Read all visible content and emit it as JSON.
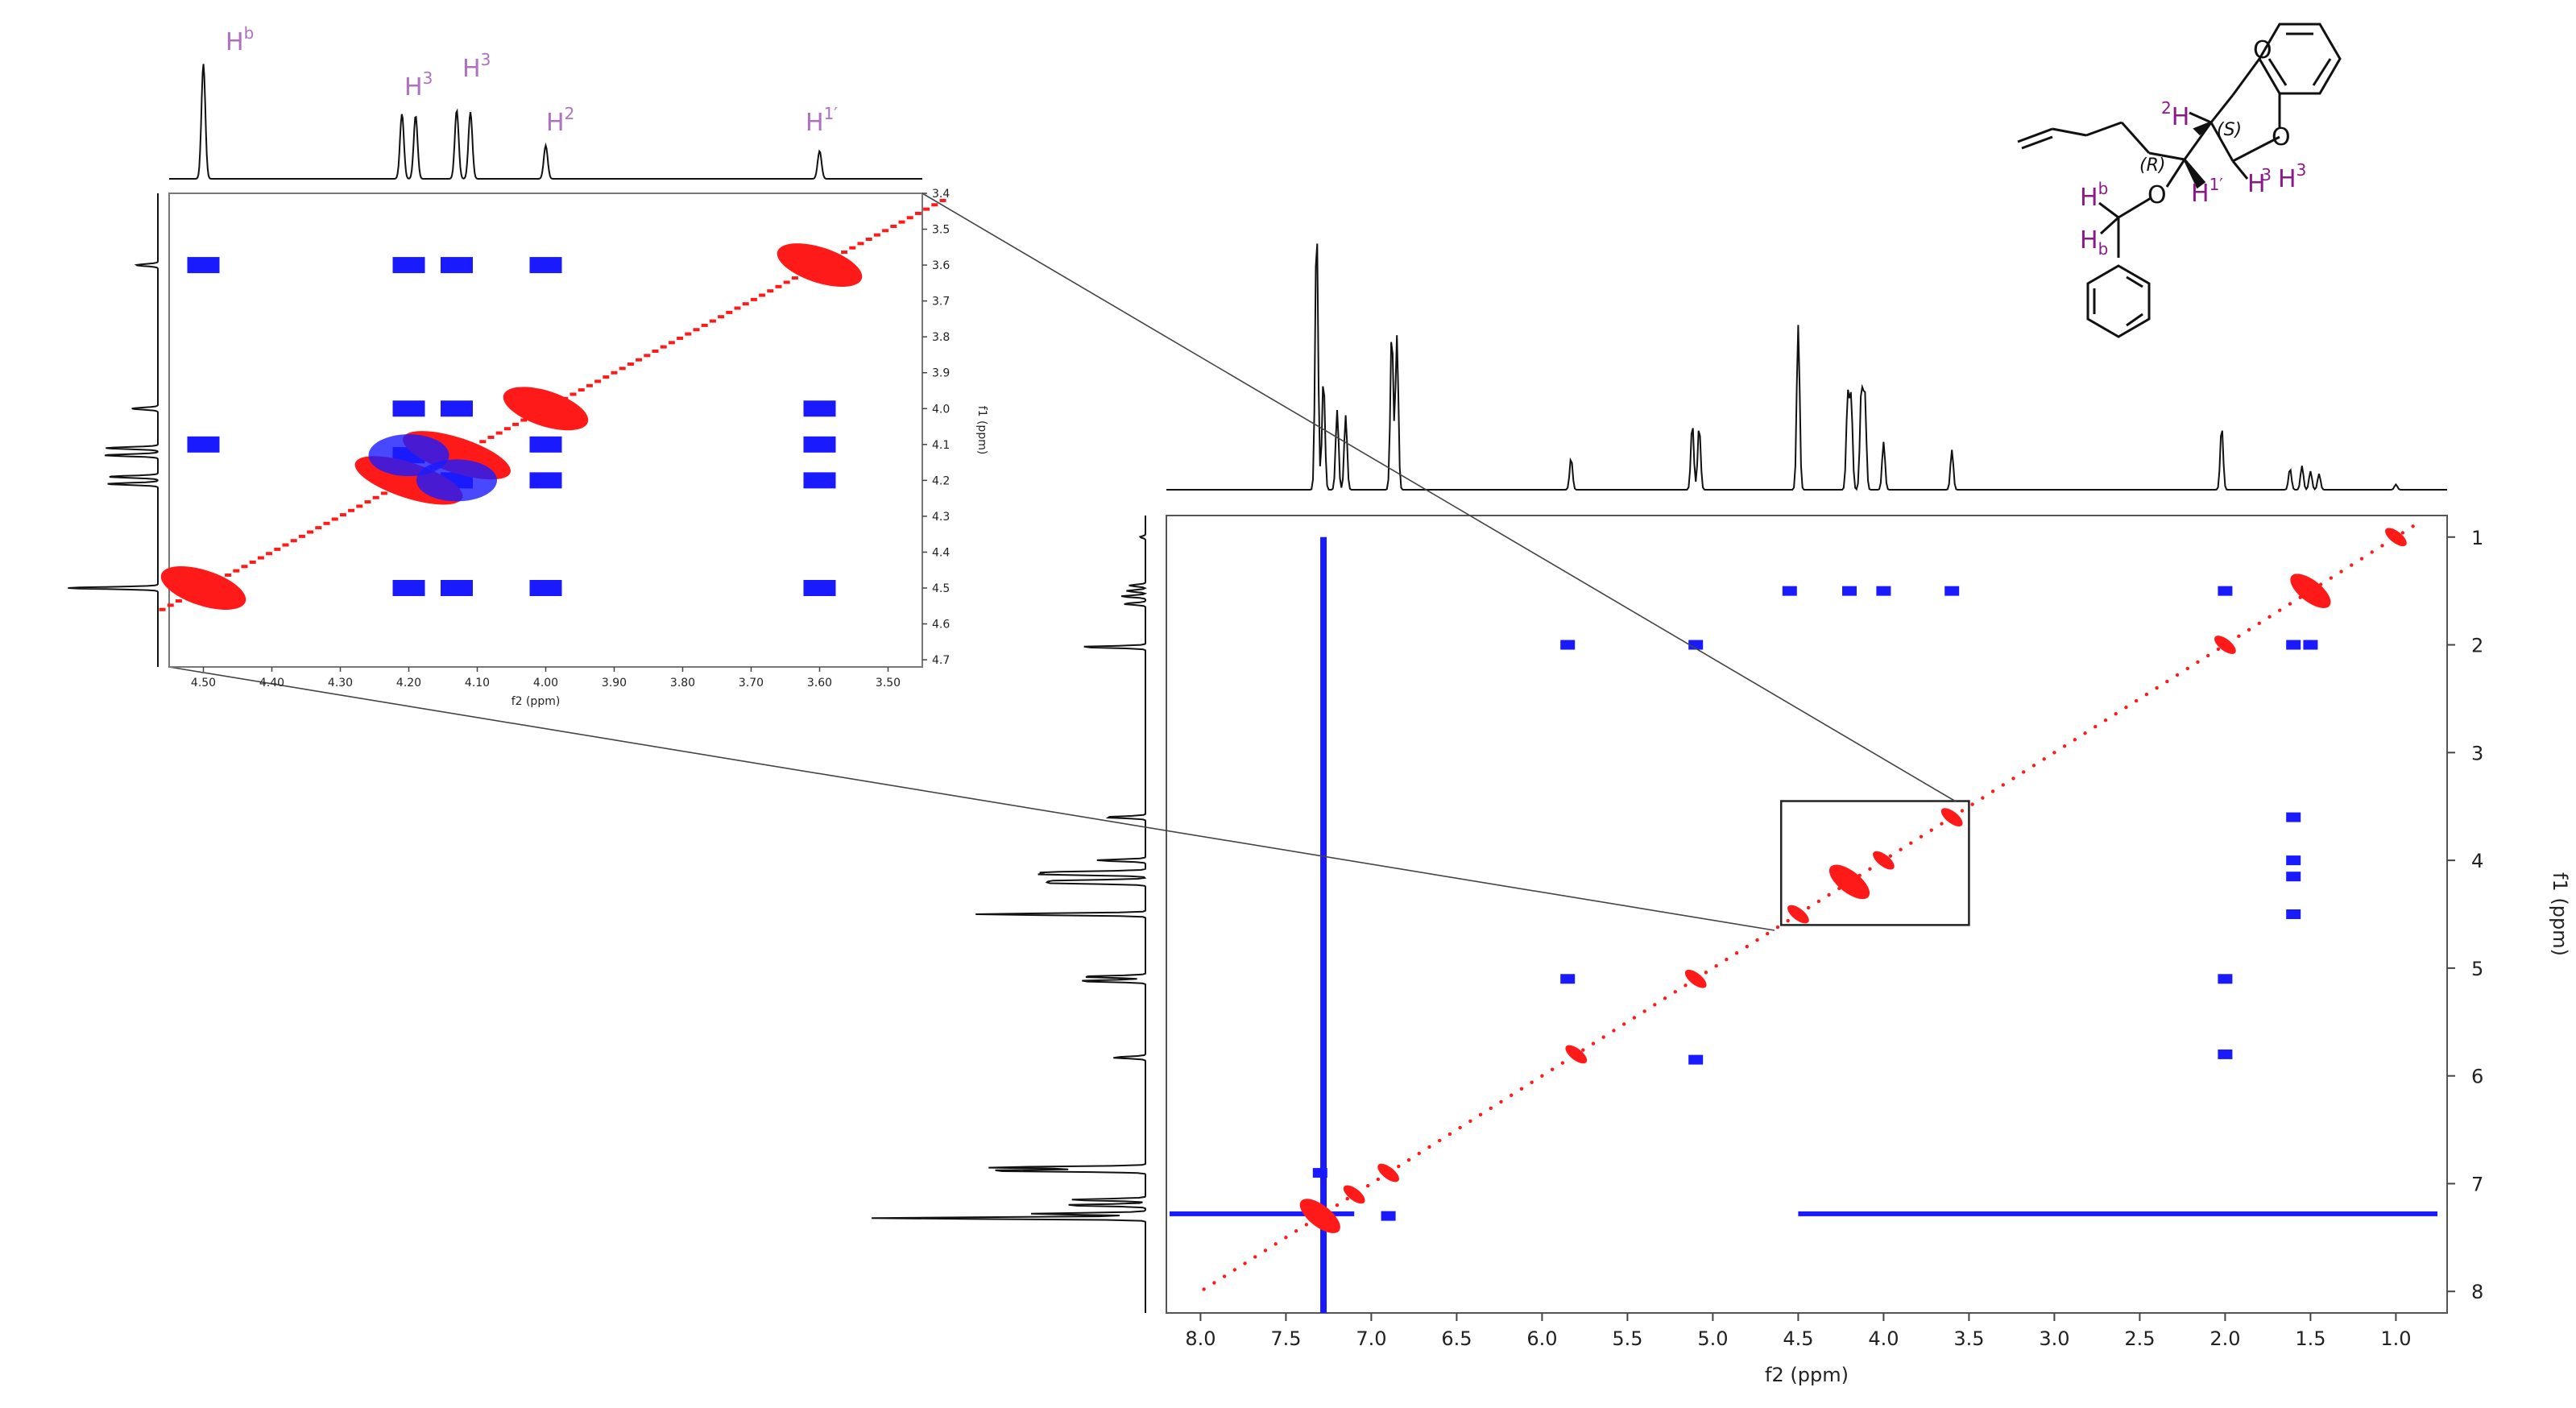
{
  "chart_data": [
    {
      "type": "heatmap",
      "subtype": "2D NMR contour plot (COSY-type)",
      "xlabel": "f2 (ppm)",
      "ylabel": "f1 (ppm)",
      "xlim": [
        8.2,
        0.7
      ],
      "ylim": [
        0.8,
        8.2
      ],
      "xticks": [
        "8.0",
        "7.5",
        "7.0",
        "6.5",
        "6.0",
        "5.5",
        "5.0",
        "4.5",
        "4.0",
        "3.5",
        "3.0",
        "2.5",
        "2.0",
        "1.5",
        "1.0"
      ],
      "yticks": [
        "1",
        "2",
        "3",
        "4",
        "5",
        "6",
        "7",
        "8"
      ],
      "diagonal_peaks": [
        1.0,
        1.5,
        2.0,
        3.6,
        4.0,
        4.2,
        4.5,
        5.1,
        5.8,
        6.9,
        7.1,
        7.3
      ],
      "cross_peaks": [
        {
          "f2": 7.28,
          "f1": [
            1.0,
            8.2
          ],
          "kind": "solvent-stripe"
        },
        {
          "f2": 5.85,
          "f1": 2.0
        },
        {
          "f2": 5.1,
          "f1": 2.0
        },
        {
          "f2": 4.55,
          "f1": 1.5
        },
        {
          "f2": 4.2,
          "f1": 1.5
        },
        {
          "f2": 4.0,
          "f1": 1.5
        },
        {
          "f2": 3.6,
          "f1": 1.5
        },
        {
          "f2": 2.0,
          "f1": 1.5
        },
        {
          "f2": 1.6,
          "f1": 2.0
        },
        {
          "f2": 1.5,
          "f1": 2.0
        },
        {
          "f2": 2.0,
          "f1": 5.1
        },
        {
          "f2": 2.0,
          "f1": 5.8
        },
        {
          "f2": 1.6,
          "f1": 3.6
        },
        {
          "f2": 1.6,
          "f1": 4.0
        },
        {
          "f2": 1.6,
          "f1": 4.15
        },
        {
          "f2": 1.6,
          "f1": 4.5
        },
        {
          "f2": 5.85,
          "f1": 5.1
        },
        {
          "f2": 5.1,
          "f1": 5.85
        },
        {
          "f2": 7.3,
          "f1": 6.9
        },
        {
          "f2": 6.9,
          "f1": 7.3
        },
        {
          "f2": 4.5,
          "f1": 7.28,
          "kind": "solvent-stripe-horizontal"
        }
      ],
      "inset_box": {
        "f2": [
          4.6,
          3.5
        ],
        "f1": [
          3.45,
          4.6
        ]
      }
    },
    {
      "type": "heatmap",
      "subtype": "expanded 2D NMR region",
      "xlabel": "f2 (ppm)",
      "ylabel": "f1 (ppm)",
      "xlim": [
        4.55,
        3.45
      ],
      "ylim": [
        3.4,
        4.72
      ],
      "xticks": [
        "4.50",
        "4.40",
        "4.30",
        "4.20",
        "4.10",
        "4.00",
        "3.90",
        "3.80",
        "3.70",
        "3.60",
        "3.50"
      ],
      "yticks": [
        "3.4",
        "3.5",
        "3.6",
        "3.7",
        "3.8",
        "3.9",
        "4.0",
        "4.1",
        "4.2",
        "4.3",
        "4.4",
        "4.5",
        "4.6",
        "4.7"
      ],
      "peak_labels": [
        "H",
        "H",
        "H",
        "H",
        "H"
      ],
      "peak_label_sups": [
        "b",
        "3",
        "3",
        "2",
        "1′"
      ],
      "diagonal_peaks": [
        3.6,
        4.0,
        4.13,
        4.2,
        4.5
      ],
      "cross_peaks": [
        {
          "f2": 4.5,
          "f1": 3.6
        },
        {
          "f2": 4.2,
          "f1": 3.6
        },
        {
          "f2": 4.13,
          "f1": 3.6
        },
        {
          "f2": 4.0,
          "f1": 3.6
        },
        {
          "f2": 4.2,
          "f1": 4.0
        },
        {
          "f2": 4.13,
          "f1": 4.0
        },
        {
          "f2": 3.6,
          "f1": 4.0
        },
        {
          "f2": 4.2,
          "f1": 4.13
        },
        {
          "f2": 4.13,
          "f1": 4.2
        },
        {
          "f2": 4.5,
          "f1": 4.1
        },
        {
          "f2": 4.0,
          "f1": 4.1
        },
        {
          "f2": 3.6,
          "f1": 4.1
        },
        {
          "f2": 4.0,
          "f1": 4.2
        },
        {
          "f2": 3.6,
          "f1": 4.2
        },
        {
          "f2": 4.2,
          "f1": 4.5
        },
        {
          "f2": 4.13,
          "f1": 4.5
        },
        {
          "f2": 4.0,
          "f1": 4.5
        },
        {
          "f2": 3.6,
          "f1": 4.5
        }
      ]
    }
  ],
  "spectrum_1d": {
    "peaks_ppm": [
      7.32,
      7.28,
      7.2,
      7.15,
      6.88,
      6.85,
      5.83,
      5.12,
      5.08,
      4.5,
      4.21,
      4.19,
      4.13,
      4.11,
      4.0,
      3.6,
      2.02,
      1.62,
      1.55,
      1.5,
      1.45,
      1.0
    ]
  },
  "molecule": {
    "atoms": [
      "O",
      "O",
      "O"
    ],
    "stereo": [
      "(S)",
      "(R)"
    ],
    "h_labels": [
      "H",
      "H",
      "H",
      "H",
      "H",
      "H"
    ],
    "h_sups": [
      "2",
      "1′",
      "3",
      "3",
      "b"
    ],
    "h_subs": [
      "b"
    ]
  },
  "colors": {
    "positive": "#ff1a1a",
    "negative": "#1a1aff",
    "trace": "#111111",
    "label": "#b070c0",
    "mol_label": "#8a1a8a"
  }
}
